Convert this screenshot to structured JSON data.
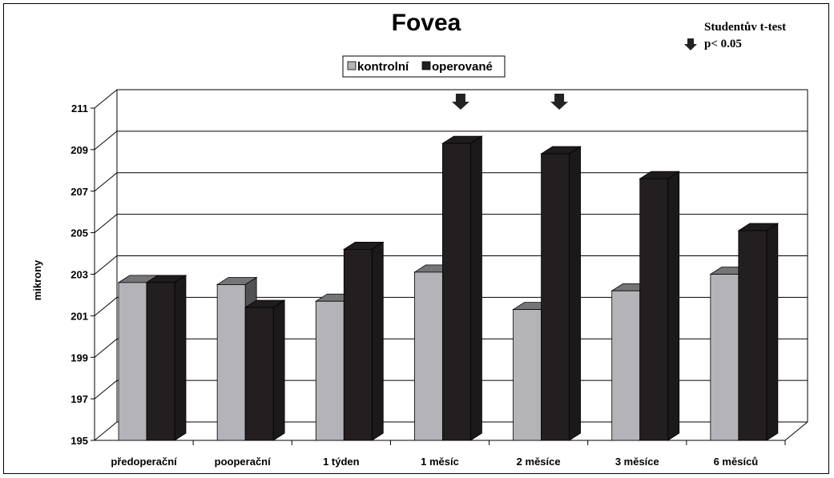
{
  "chart_data": {
    "type": "bar",
    "title": "Fovea",
    "xlabel": "",
    "ylabel": "mikrony",
    "ylim": [
      195,
      211
    ],
    "yticks": [
      "211",
      "209",
      "207",
      "205",
      "203",
      "201",
      "199",
      "197",
      "195"
    ],
    "categories": [
      "předoperační",
      "pooperační",
      "1 týden",
      "1 měsíc",
      "2 měsíce",
      "3 měsíce",
      "6 měsíců"
    ],
    "series": [
      {
        "name": "kontrolní",
        "color": "#b4b4b8",
        "values": [
          202.6,
          202.5,
          201.7,
          203.1,
          201.3,
          202.2,
          203.0
        ]
      },
      {
        "name": "operované",
        "color": "#231f20",
        "values": [
          202.6,
          201.4,
          204.2,
          209.3,
          208.8,
          207.6,
          205.1
        ]
      }
    ],
    "significant_categories": [
      "1 měsíc",
      "2 měsíce"
    ],
    "legend_position": "top-center",
    "grid": true,
    "annotation": {
      "line1": "Studentův t-test",
      "line2": "p< 0.05",
      "marker_icon": "down-arrow-icon"
    }
  }
}
